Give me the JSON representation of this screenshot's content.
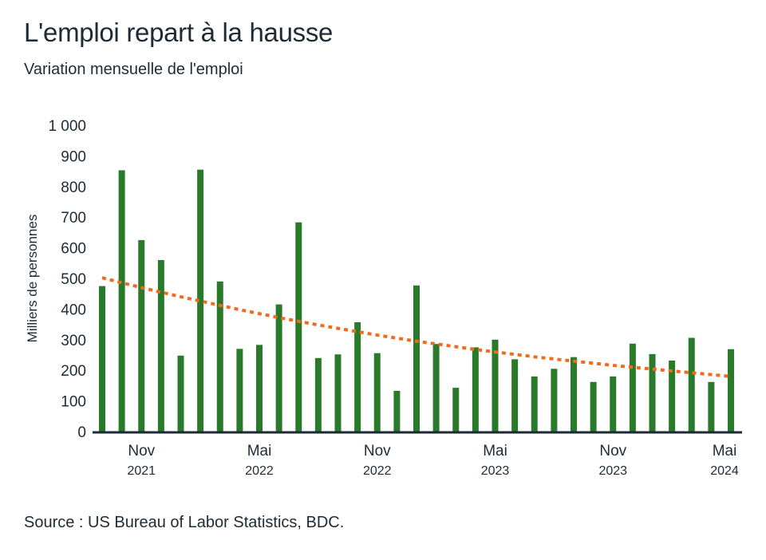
{
  "title": "L'emploi repart à la hausse",
  "subtitle": "Variation mensuelle de l'emploi",
  "source": "Source : US Bureau of Labor Statistics, BDC.",
  "colors": {
    "bar": "#2a7a2b",
    "trend": "#f26a1b",
    "axis": "#1e2b36"
  },
  "chart_data": {
    "type": "bar",
    "ylabel": "Milliers de personnes",
    "ylim": [
      0,
      1000
    ],
    "yticks": [
      "0",
      "100",
      "200",
      "300",
      "400",
      "500",
      "600",
      "700",
      "800",
      "900",
      "1 000"
    ],
    "ytick_values": [
      0,
      100,
      200,
      300,
      400,
      500,
      600,
      700,
      800,
      900,
      1000
    ],
    "categories": [
      "2021-09",
      "2021-10",
      "2021-11",
      "2021-12",
      "2022-01",
      "2022-02",
      "2022-03",
      "2022-04",
      "2022-05",
      "2022-06",
      "2022-07",
      "2022-08",
      "2022-09",
      "2022-10",
      "2022-11",
      "2022-12",
      "2023-01",
      "2023-02",
      "2023-03",
      "2023-04",
      "2023-05",
      "2023-06",
      "2023-07",
      "2023-08",
      "2023-09",
      "2023-10",
      "2023-11",
      "2023-12",
      "2024-01",
      "2024-02",
      "2024-03",
      "2024-04",
      "2024-05"
    ],
    "xtick_labels": [
      {
        "month": "Nov",
        "year": "2021",
        "index": 2
      },
      {
        "month": "Mai",
        "year": "2022",
        "index": 8
      },
      {
        "month": "Nov",
        "year": "2022",
        "index": 14
      },
      {
        "month": "Mai",
        "year": "2023",
        "index": 20
      },
      {
        "month": "Nov",
        "year": "2023",
        "index": 26
      },
      {
        "month": "Mai",
        "year": "2024",
        "index": 32
      }
    ],
    "series": [
      {
        "type": "bar",
        "values": [
          475,
          853,
          625,
          560,
          248,
          855,
          490,
          270,
          283,
          415,
          683,
          240,
          252,
          357,
          256,
          133,
          477,
          286,
          143,
          275,
          300,
          236,
          180,
          205,
          243,
          162,
          180,
          287,
          253,
          232,
          306,
          162,
          269
        ]
      },
      {
        "type": "line",
        "style": "dashed",
        "values": [
          502,
          486,
          470,
          455,
          440,
          426,
          412,
          398,
          385,
          372,
          360,
          348,
          337,
          326,
          315,
          305,
          295,
          286,
          277,
          268,
          260,
          252,
          244,
          237,
          230,
          223,
          216,
          210,
          204,
          198,
          192,
          186,
          180
        ]
      }
    ]
  }
}
